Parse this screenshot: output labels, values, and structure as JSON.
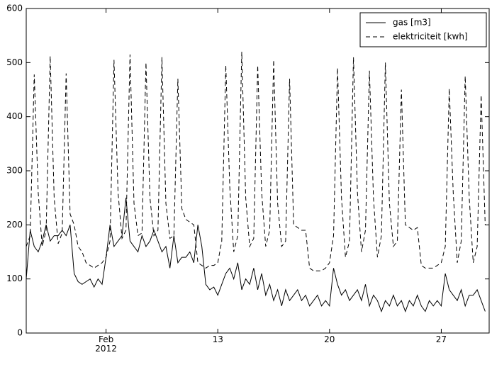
{
  "chart_data": {
    "type": "line",
    "x": [
      1,
      1.25,
      1.5,
      1.75,
      2,
      2.25,
      2.5,
      2.75,
      3,
      3.25,
      3.5,
      3.75,
      4,
      4.25,
      4.5,
      4.75,
      5,
      5.25,
      5.5,
      5.75,
      6,
      6.25,
      6.5,
      6.75,
      7,
      7.25,
      7.5,
      7.75,
      8,
      8.25,
      8.5,
      8.75,
      9,
      9.25,
      9.5,
      9.75,
      10,
      10.25,
      10.5,
      10.75,
      11,
      11.25,
      11.5,
      11.75,
      12,
      12.25,
      12.5,
      12.75,
      13,
      13.25,
      13.5,
      13.75,
      14,
      14.25,
      14.5,
      14.75,
      15,
      15.25,
      15.5,
      15.75,
      16,
      16.25,
      16.5,
      16.75,
      17,
      17.25,
      17.5,
      17.75,
      18,
      18.25,
      18.5,
      18.75,
      19,
      19.25,
      19.5,
      19.75,
      20,
      20.25,
      20.5,
      20.75,
      21,
      21.25,
      21.5,
      21.75,
      22,
      22.25,
      22.5,
      22.75,
      23,
      23.25,
      23.5,
      23.75,
      24,
      24.25,
      24.5,
      24.75,
      25,
      25.25,
      25.5,
      25.75,
      26,
      26.25,
      26.5,
      26.75,
      27,
      27.25,
      27.5,
      27.75,
      28,
      28.25,
      28.5,
      28.75,
      29,
      29.25,
      29.5,
      29.75
    ],
    "series": [
      {
        "name": "gas [m3]",
        "color": "#000000",
        "linestyle": "solid",
        "values": [
          100,
          190,
          160,
          150,
          170,
          200,
          170,
          180,
          180,
          190,
          180,
          200,
          110,
          95,
          90,
          95,
          100,
          85,
          100,
          90,
          140,
          200,
          160,
          170,
          180,
          250,
          170,
          160,
          150,
          180,
          160,
          170,
          190,
          170,
          150,
          160,
          120,
          180,
          130,
          140,
          140,
          150,
          130,
          200,
          160,
          90,
          80,
          85,
          70,
          90,
          110,
          120,
          100,
          130,
          80,
          100,
          90,
          120,
          80,
          110,
          70,
          90,
          60,
          80,
          50,
          80,
          60,
          70,
          80,
          60,
          70,
          50,
          60,
          70,
          50,
          60,
          50,
          120,
          90,
          70,
          80,
          60,
          70,
          80,
          60,
          90,
          50,
          70,
          60,
          40,
          60,
          50,
          70,
          50,
          60,
          40,
          60,
          50,
          70,
          50,
          40,
          60,
          50,
          60,
          50,
          110,
          80,
          70,
          60,
          80,
          50,
          70,
          70,
          80,
          60,
          40
        ]
      },
      {
        "name": "elektriciteit [kwh]",
        "color": "#000000",
        "linestyle": "dashed",
        "values": [
          160,
          180,
          478,
          260,
          160,
          190,
          512,
          250,
          165,
          185,
          480,
          220,
          200,
          160,
          150,
          130,
          125,
          120,
          125,
          130,
          140,
          170,
          505,
          260,
          175,
          190,
          515,
          240,
          180,
          185,
          500,
          250,
          180,
          190,
          510,
          240,
          175,
          180,
          470,
          230,
          210,
          205,
          200,
          130,
          125,
          120,
          125,
          125,
          130,
          170,
          495,
          270,
          150,
          180,
          520,
          250,
          160,
          175,
          495,
          260,
          160,
          190,
          505,
          240,
          160,
          170,
          470,
          200,
          195,
          190,
          190,
          120,
          115,
          115,
          115,
          120,
          130,
          180,
          490,
          250,
          140,
          170,
          510,
          260,
          150,
          190,
          485,
          250,
          140,
          180,
          500,
          240,
          160,
          170,
          450,
          200,
          195,
          190,
          195,
          125,
          120,
          120,
          120,
          125,
          130,
          160,
          452,
          260,
          130,
          170,
          475,
          250,
          130,
          160,
          440,
          200
        ]
      }
    ],
    "xlim": [
      1,
      30
    ],
    "xticks": [
      {
        "value": 6,
        "label": "Feb\n2012"
      },
      13,
      20,
      27
    ],
    "ylim": [
      0,
      600
    ],
    "yticks": [
      0,
      100,
      200,
      300,
      400,
      500,
      600
    ],
    "legend": "upper right"
  }
}
